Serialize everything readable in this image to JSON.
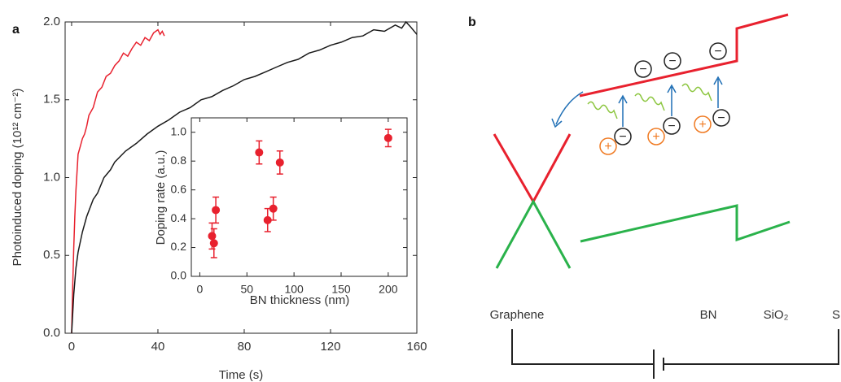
{
  "chart_data": [
    {
      "type": "line",
      "panel_label": "a",
      "xlabel": "Time (s)",
      "ylabel": "Photoinduced doping (10¹² cm⁻²)",
      "xlim": [
        -3,
        160
      ],
      "xticks": [
        0,
        40,
        80,
        120,
        160
      ],
      "ylim": [
        0,
        2
      ],
      "yticks": [
        {
          "value": 0,
          "label": "0.0"
        },
        {
          "value": 0.5,
          "label": "0.5"
        },
        {
          "value": 1,
          "label": "1.0"
        },
        {
          "value": 1.5,
          "label": "1.5"
        },
        {
          "value": 2,
          "label": "2.0"
        }
      ],
      "series": [
        {
          "color": "#e8212e",
          "x": [
            0,
            0.5,
            1,
            1.5,
            2,
            3,
            4,
            5,
            6,
            7,
            8,
            10,
            12,
            14,
            16,
            18,
            20,
            22,
            24,
            26,
            28,
            30,
            32,
            34,
            36,
            38,
            40,
            41,
            42,
            43
          ],
          "values": [
            0,
            0.3,
            0.55,
            0.75,
            0.92,
            1.15,
            1.2,
            1.25,
            1.28,
            1.33,
            1.4,
            1.45,
            1.55,
            1.58,
            1.65,
            1.67,
            1.72,
            1.75,
            1.8,
            1.78,
            1.83,
            1.87,
            1.85,
            1.9,
            1.88,
            1.93,
            1.95,
            1.92,
            1.94,
            1.91
          ]
        },
        {
          "color": "#1a1a1a",
          "x": [
            0,
            1,
            2,
            3,
            5,
            7,
            10,
            12,
            15,
            18,
            20,
            25,
            30,
            35,
            40,
            45,
            50,
            55,
            60,
            65,
            70,
            75,
            80,
            85,
            90,
            95,
            100,
            105,
            110,
            115,
            120,
            125,
            130,
            135,
            140,
            145,
            150,
            153,
            155,
            157,
            160
          ],
          "values": [
            0,
            0.25,
            0.42,
            0.52,
            0.65,
            0.75,
            0.86,
            0.9,
            1.0,
            1.05,
            1.1,
            1.17,
            1.22,
            1.28,
            1.33,
            1.37,
            1.42,
            1.45,
            1.5,
            1.52,
            1.56,
            1.59,
            1.63,
            1.65,
            1.68,
            1.71,
            1.74,
            1.76,
            1.8,
            1.82,
            1.85,
            1.87,
            1.9,
            1.91,
            1.95,
            1.94,
            1.98,
            1.96,
            2.0,
            1.97,
            1.92
          ]
        }
      ]
    },
    {
      "type": "scatter",
      "xlabel": "BN thickness (nm)",
      "ylabel": "Doping rate (a.u.)",
      "color": "#e8212e",
      "xlim": [
        -9,
        220
      ],
      "xticks": [
        0,
        50,
        100,
        150,
        200
      ],
      "ylim": [
        0,
        1.1
      ],
      "yticks": [
        {
          "value": 0,
          "label": "0.0"
        },
        0.2,
        0.4,
        0.6,
        0.8,
        {
          "value": 1,
          "label": "1.0"
        }
      ],
      "x": [
        13,
        15,
        17,
        63,
        72,
        78,
        85,
        200
      ],
      "values": [
        0.28,
        0.23,
        0.46,
        0.86,
        0.39,
        0.47,
        0.79,
        0.96
      ],
      "errors": [
        0.09,
        0.1,
        0.09,
        0.08,
        0.08,
        0.08,
        0.08,
        0.06
      ]
    }
  ],
  "diagram": {
    "panel_label": "b",
    "labels": [
      "Graphene",
      "BN",
      "SiO₂",
      "S"
    ],
    "electron_symbol": "−",
    "hole_symbol": "+"
  }
}
